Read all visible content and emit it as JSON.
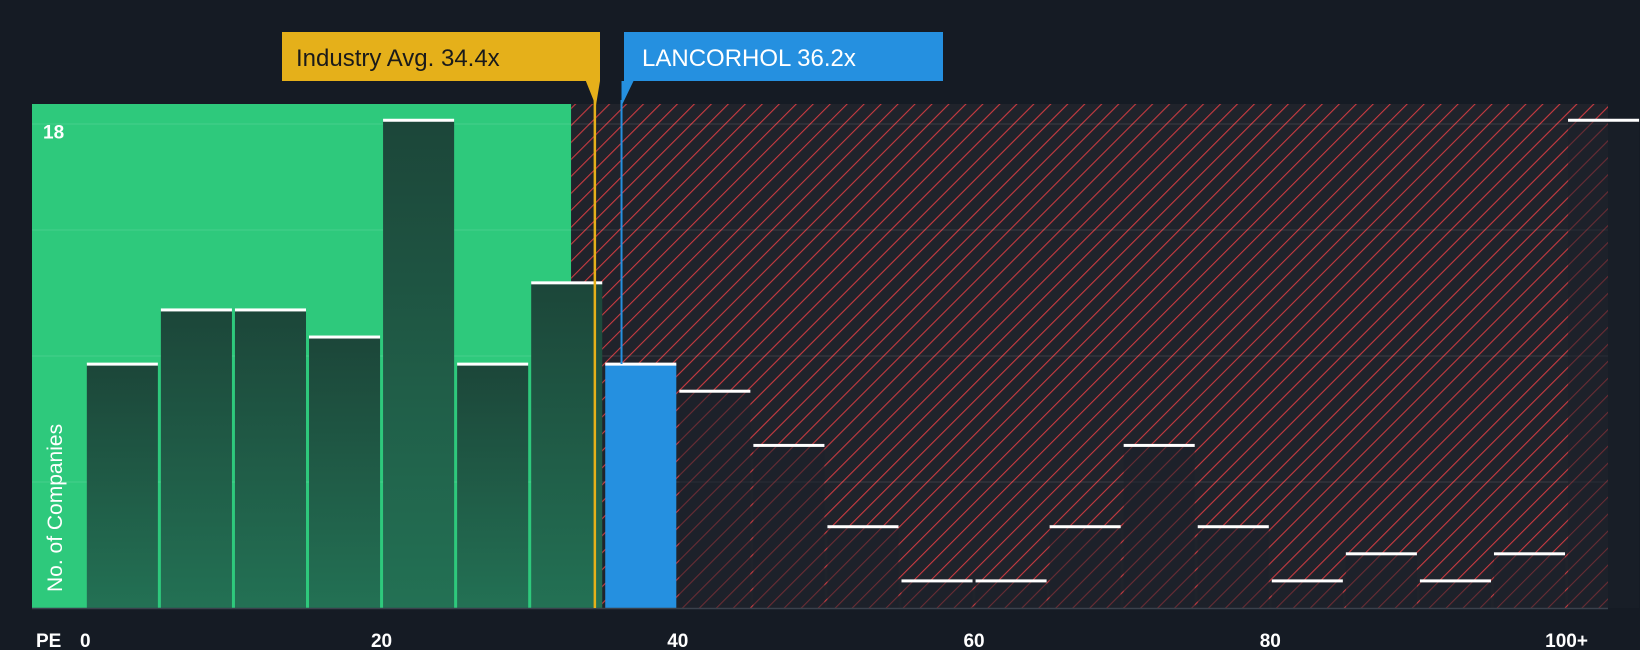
{
  "chart_data": {
    "type": "bar",
    "xlabel": "PE",
    "ylabel": "No. of Companies",
    "x_ticks": [
      {
        "value": 0,
        "label": "0"
      },
      {
        "value": 20,
        "label": "20"
      },
      {
        "value": 40,
        "label": "40"
      },
      {
        "value": 60,
        "label": "60"
      },
      {
        "value": 80,
        "label": "80"
      },
      {
        "value": 100,
        "label": "100+"
      }
    ],
    "y_ticks": [
      {
        "value": 18,
        "label": "18"
      }
    ],
    "xlim": [
      -3.6,
      102.8
    ],
    "ylim": [
      0,
      18.6
    ],
    "bin_width": 5,
    "bins": [
      {
        "start": 0,
        "value": 9
      },
      {
        "start": 5,
        "value": 11
      },
      {
        "start": 10,
        "value": 11
      },
      {
        "start": 15,
        "value": 10
      },
      {
        "start": 20,
        "value": 18
      },
      {
        "start": 25,
        "value": 9
      },
      {
        "start": 30,
        "value": 12
      },
      {
        "start": 35,
        "value": 9
      },
      {
        "start": 40,
        "value": 8
      },
      {
        "start": 45,
        "value": 6
      },
      {
        "start": 50,
        "value": 3
      },
      {
        "start": 55,
        "value": 1
      },
      {
        "start": 60,
        "value": 1
      },
      {
        "start": 65,
        "value": 3
      },
      {
        "start": 70,
        "value": 6
      },
      {
        "start": 75,
        "value": 3
      },
      {
        "start": 80,
        "value": 1
      },
      {
        "start": 85,
        "value": 2
      },
      {
        "start": 90,
        "value": 1
      },
      {
        "start": 95,
        "value": 2
      },
      {
        "start": 100,
        "value": 18
      }
    ],
    "industry_avg": {
      "value": 34.4,
      "label": "Industry Avg. 34.4x"
    },
    "company": {
      "value": 36.2,
      "label": "LANCORHOL 36.2x"
    },
    "colors": {
      "background": "#151b24",
      "good_zone": "#2ec97c",
      "bar_in_zone": "#1f4d3b",
      "bar_out_zone": "#1c2029",
      "hatch_bg": "#20232b",
      "hatch_line": "#c93b41",
      "company_bar": "#2590e0",
      "industry_callout": "#e5b01a",
      "company_callout": "#2590e0",
      "bar_cap": "#ffffff",
      "axis_text": "#ffffff",
      "axis_line": "#3a414c"
    }
  }
}
